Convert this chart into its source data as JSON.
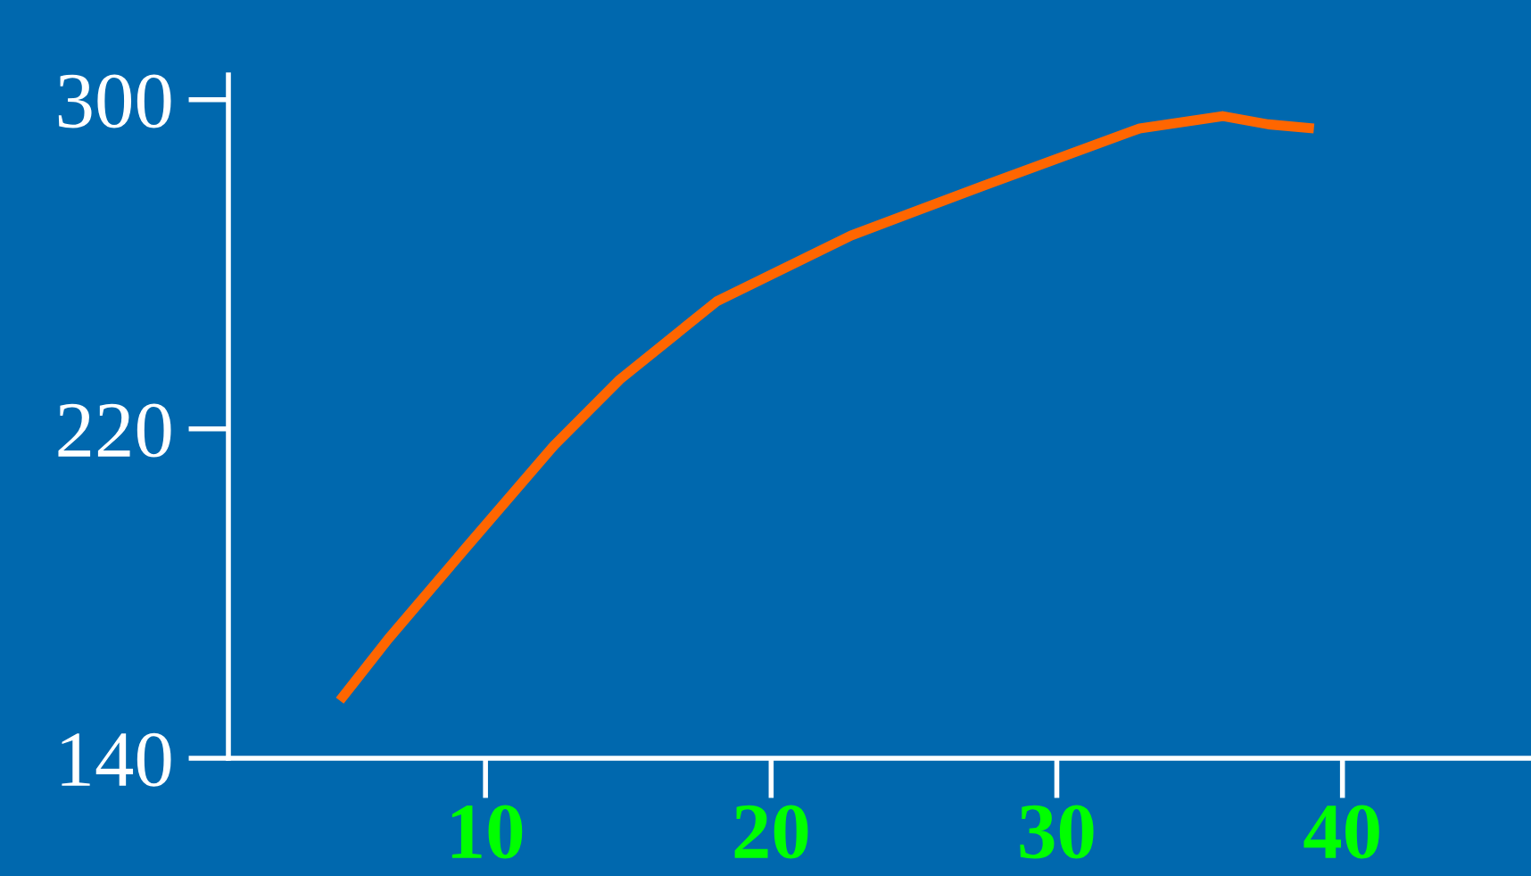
{
  "chart_data": {
    "type": "line",
    "x": [
      4.9,
      6.6,
      9.3,
      12.4,
      14.7,
      18.1,
      22.8,
      27.4,
      32.9,
      35.8,
      37.4,
      39.0
    ],
    "series": [
      {
        "color": "#ff6600",
        "values": [
          154,
          169,
          191,
          216,
          232,
          251,
          267,
          279,
          293,
          296,
          294,
          293
        ]
      }
    ],
    "xlim": [
      1,
      46.6
    ],
    "ylim": [
      140,
      306
    ],
    "xticks": [
      10,
      20,
      30,
      40
    ],
    "yticks": [
      140,
      220,
      300
    ],
    "grid": false,
    "legend": false,
    "marker": "none",
    "line_style": "solid"
  }
}
